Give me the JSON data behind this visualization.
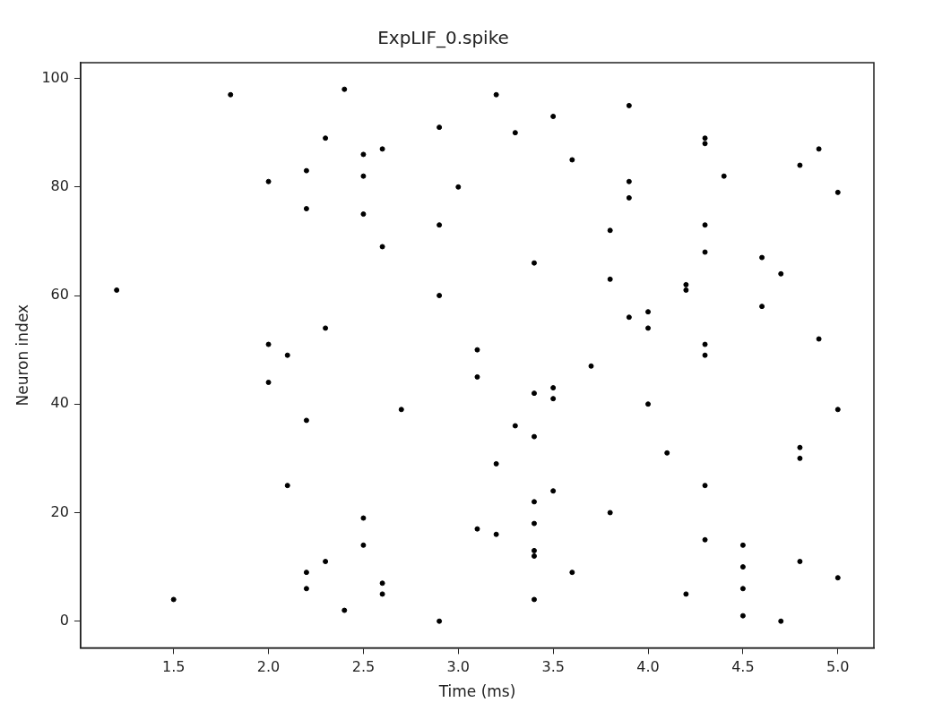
{
  "chart_data": {
    "type": "scatter",
    "title": "ExpLIF_0.spike",
    "xlabel": "Time (ms)",
    "ylabel": "Neuron index",
    "marker": "circle",
    "grid": false,
    "legend": false,
    "xlim": [
      1.01,
      5.19
    ],
    "ylim": [
      -4.9,
      102.9
    ],
    "xticks": [
      {
        "value": 1.5,
        "label": "1.5"
      },
      {
        "value": 2.0,
        "label": "2.0"
      },
      {
        "value": 2.5,
        "label": "2.5"
      },
      {
        "value": 3.0,
        "label": "3.0"
      },
      {
        "value": 3.5,
        "label": "3.5"
      },
      {
        "value": 4.0,
        "label": "4.0"
      },
      {
        "value": 4.5,
        "label": "4.5"
      },
      {
        "value": 5.0,
        "label": "5.0"
      }
    ],
    "yticks": [
      0,
      20,
      40,
      60,
      80,
      100
    ],
    "series": [
      {
        "color": "#000000",
        "x": [
          1.2,
          1.5,
          1.8,
          2.0,
          2.0,
          2.0,
          2.1,
          2.1,
          2.2,
          2.2,
          2.2,
          2.2,
          2.2,
          2.3,
          2.3,
          2.3,
          2.4,
          2.4,
          2.5,
          2.5,
          2.5,
          2.5,
          2.5,
          2.6,
          2.6,
          2.6,
          2.6,
          2.7,
          2.9,
          2.9,
          2.9,
          2.9,
          3.0,
          3.1,
          3.1,
          3.1,
          3.2,
          3.2,
          3.2,
          3.3,
          3.3,
          3.4,
          3.4,
          3.4,
          3.4,
          3.4,
          3.4,
          3.4,
          3.4,
          3.5,
          3.5,
          3.5,
          3.5,
          3.6,
          3.6,
          3.7,
          3.8,
          3.8,
          3.8,
          3.9,
          3.9,
          3.9,
          3.9,
          4.0,
          4.0,
          4.0,
          4.1,
          4.2,
          4.2,
          4.2,
          4.3,
          4.3,
          4.3,
          4.3,
          4.3,
          4.3,
          4.3,
          4.3,
          4.4,
          4.5,
          4.5,
          4.5,
          4.5,
          4.6,
          4.6,
          4.7,
          4.7,
          4.8,
          4.8,
          4.8,
          4.8,
          4.9,
          4.9,
          5.0,
          5.0,
          5.0
        ],
        "values": [
          61,
          4,
          97,
          81,
          51,
          44,
          49,
          25,
          83,
          76,
          37,
          9,
          6,
          89,
          54,
          11,
          98,
          2,
          86,
          82,
          75,
          19,
          14,
          87,
          69,
          7,
          5,
          39,
          91,
          73,
          60,
          0,
          80,
          50,
          45,
          17,
          97,
          29,
          16,
          90,
          36,
          66,
          42,
          34,
          22,
          18,
          13,
          12,
          4,
          93,
          43,
          41,
          24,
          85,
          9,
          47,
          72,
          63,
          20,
          95,
          81,
          78,
          56,
          57,
          54,
          40,
          31,
          62,
          61,
          5,
          89,
          88,
          73,
          68,
          51,
          49,
          25,
          15,
          82,
          14,
          10,
          6,
          1,
          67,
          58,
          64,
          0,
          84,
          32,
          30,
          11,
          87,
          52,
          79,
          39,
          8
        ]
      }
    ]
  }
}
